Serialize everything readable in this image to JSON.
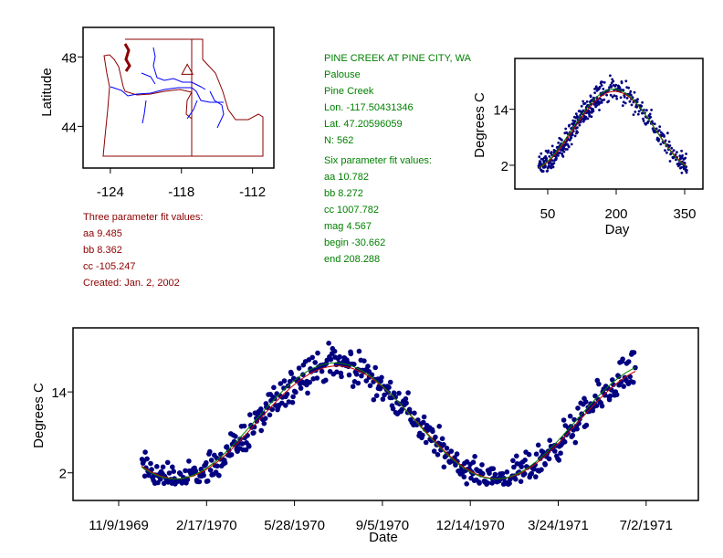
{
  "station": {
    "title": "PINE CREEK AT PINE CITY, WA",
    "basin": "Palouse",
    "stream": "Pine Creek",
    "lon_label": "Lon. -117.50431346",
    "lat_label": "Lat. 47.20596059",
    "n_label": "N: 562",
    "lon": -117.50431346,
    "lat": 47.20596059,
    "n": 562
  },
  "three_param": {
    "heading": "Three parameter fit values:",
    "aa_label": "aa 9.485",
    "bb_label": "bb 8.362",
    "cc_label": "cc -105.247",
    "created_label": "Created:   Jan. 2, 2002",
    "aa": 9.485,
    "bb": 8.362,
    "cc": -105.247,
    "color": "#cc0000"
  },
  "six_param": {
    "heading": "Six parameter fit values:",
    "aa_label": "aa 10.782",
    "bb_label": "bb 8.272",
    "cc_label": "cc 1007.782",
    "mag_label": "mag 4.567",
    "begin_label": "begin -30.662",
    "end_label": "end 208.288",
    "color": "#008000"
  },
  "chart_data": [
    {
      "type": "map",
      "ylabel": "Latitude",
      "xticks": [
        "-124",
        "-118",
        "-112"
      ],
      "yticks": [
        "48",
        "44"
      ],
      "xlim": [
        -126.3,
        -110.2
      ],
      "ylim": [
        41.6,
        49.7
      ],
      "marker": "triangle at station location"
    },
    {
      "type": "scatter",
      "xlabel": "Day",
      "ylabel": "Degrees C",
      "xticks": [
        "50",
        "200",
        "350"
      ],
      "yticks": [
        "14",
        "2"
      ],
      "xlim": [
        -22,
        390
      ],
      "ylim": [
        -3.1,
        24.9
      ],
      "point_color": "#000080",
      "day_range": [
        30,
        355
      ]
    },
    {
      "type": "scatter",
      "xlabel": "Date",
      "ylabel": "Degrees C",
      "xticks": [
        "11/9/1969",
        "2/17/1970",
        "5/28/1970",
        "9/5/1970",
        "12/14/1970",
        "3/24/1971",
        "7/2/1971"
      ],
      "yticks": [
        "14",
        "2"
      ],
      "ylim": [
        -2.1,
        23.5
      ],
      "point_color": "#000080",
      "date_range": [
        "12/5/1969",
        "6/20/1971"
      ]
    }
  ]
}
